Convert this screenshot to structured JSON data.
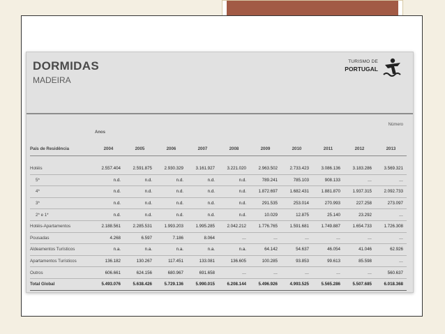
{
  "header": {
    "title": "DORMIDAS",
    "subtitle": "MADEIRA",
    "logo_line1": "TURISMO DE",
    "logo_line2": "PORTUGAL"
  },
  "table": {
    "unit_label": "Número",
    "years_label": "Anos",
    "first_col_label": "País de Residência",
    "years": [
      "2004",
      "2005",
      "2006",
      "2007",
      "2008",
      "2009",
      "2010",
      "2011",
      "2012",
      "2013"
    ],
    "rows": [
      {
        "label": "Hotéis",
        "indent": false,
        "values": [
          "2.557.404",
          "2.591.875",
          "2.930.329",
          "3.161.927",
          "3.221.020",
          "2.963.502",
          "2.733.423",
          "3.086.136",
          "3.183.286",
          "3.569.321"
        ]
      },
      {
        "label": "5*",
        "indent": true,
        "values": [
          "n.d.",
          "n.d.",
          "n.d.",
          "n.d.",
          "n.d.",
          "789.241",
          "785.103",
          "908.133",
          "…",
          "…"
        ]
      },
      {
        "label": "4*",
        "indent": true,
        "values": [
          "n.d.",
          "n.d.",
          "n.d.",
          "n.d.",
          "n.d.",
          "1.872.697",
          "1.682.431",
          "1.881.870",
          "1.937.315",
          "2.092.733"
        ]
      },
      {
        "label": "3*",
        "indent": true,
        "values": [
          "n.d.",
          "n.d.",
          "n.d.",
          "n.d.",
          "n.d.",
          "291.535",
          "253.014",
          "270.993",
          "227.258",
          "273.097"
        ]
      },
      {
        "label": "2* e 1*",
        "indent": true,
        "values": [
          "n.d.",
          "n.d.",
          "n.d.",
          "n.d.",
          "n.d.",
          "10.029",
          "12.875",
          "25.140",
          "23.292",
          "…"
        ]
      },
      {
        "label": "Hotéis-Apartamentos",
        "indent": false,
        "values": [
          "2.188.561",
          "2.285.531",
          "1.993.203",
          "1.995.285",
          "2.042.212",
          "1.776.765",
          "1.591.681",
          "1.749.887",
          "1.654.733",
          "1.726.308"
        ]
      },
      {
        "label": "Pousadas",
        "indent": false,
        "values": [
          "4.268",
          "6.597",
          "7.186",
          "8.064",
          "…",
          "…",
          "…",
          "…",
          "…",
          "…"
        ]
      },
      {
        "label": "Aldeamentos Turísticos",
        "indent": false,
        "values": [
          "n.a.",
          "n.a.",
          "n.a.",
          "n.a.",
          "n.a.",
          "64.142",
          "54.637",
          "46.054",
          "41.046",
          "62.926"
        ]
      },
      {
        "label": "Apartamentos Turísticos",
        "indent": false,
        "values": [
          "136.182",
          "130.267",
          "117.451",
          "133.081",
          "136.605",
          "100.285",
          "93.853",
          "99.613",
          "85.598",
          "…"
        ]
      },
      {
        "label": "Outros",
        "indent": false,
        "values": [
          "606.661",
          "624.156",
          "680.967",
          "691.658",
          "…",
          "…",
          "…",
          "…",
          "…",
          "560.637"
        ]
      }
    ],
    "total": {
      "label": "Total Global",
      "values": [
        "5.493.076",
        "5.638.426",
        "5.729.136",
        "5.990.015",
        "6.208.144",
        "5.496.926",
        "4.993.525",
        "5.565.286",
        "5.507.685",
        "6.018.368"
      ]
    }
  }
}
